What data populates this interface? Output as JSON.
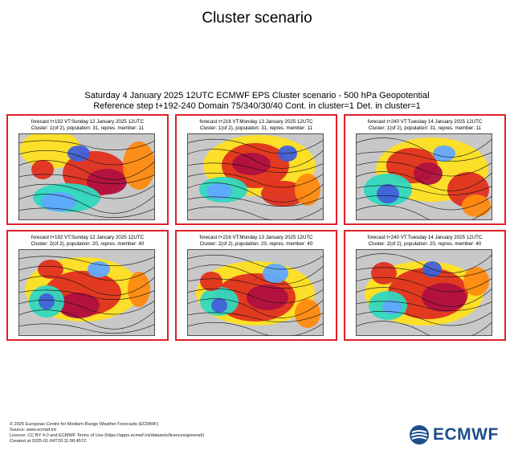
{
  "page": {
    "title": "Cluster scenario"
  },
  "chart_data": {
    "type": "map-panels",
    "title_line1": "Saturday 4 January 2025 12UTC ECMWF EPS Cluster scenario - 500 hPa Geopotential",
    "title_line2": "Reference step t+192-240 Domain 75/340/30/40 Cont. in cluster=1 Det. in cluster=1",
    "panels": [
      {
        "cluster": 1,
        "step": 192,
        "header_line1": "forecast t+192 VT:Sunday 12 January 2025 12UTC",
        "header_line2": "Cluster: 1(of 2), population: 31, repres. member: 11"
      },
      {
        "cluster": 1,
        "step": 216,
        "header_line1": "forecast t+216 VT:Monday 13 January 2025 12UTC",
        "header_line2": "Cluster: 1(of 2), population: 31, repres. member: 11"
      },
      {
        "cluster": 1,
        "step": 240,
        "header_line1": "forecast t+240 VT:Tuesday 14 January 2025 12UTC",
        "header_line2": "Cluster: 1(of 2), population: 31, repres. member: 11"
      },
      {
        "cluster": 2,
        "step": 192,
        "header_line1": "forecast t+192 VT:Sunday 12 January 2025 12UTC",
        "header_line2": "Cluster: 2(of 2), population: 20, repres. member: 40"
      },
      {
        "cluster": 2,
        "step": 216,
        "header_line1": "forecast t+216 VT:Monday 13 January 2025 12UTC",
        "header_line2": "Cluster: 2(of 2), population: 20, repres. member: 40"
      },
      {
        "cluster": 2,
        "step": 240,
        "header_line1": "forecast t+240 VT:Tuesday 14 January 2025 12UTC",
        "header_line2": "Cluster: 2(of 2), population: 20, repres. member: 40"
      }
    ],
    "colors": {
      "deep_low": "#4060d8",
      "low": "#60a8ff",
      "cool": "#30d8c0",
      "mild": "#20c050",
      "neutral": "#c8c8c8",
      "warm": "#ffe020",
      "warmer": "#ff8a10",
      "high": "#e03020",
      "very_high": "#b01040",
      "panel_border": "#e0202a"
    }
  },
  "footer": {
    "line1": "© 2025 European Centre for Medium-Range Weather Forecasts (ECMWF)",
    "line2": "Source: www.ecmwf.int",
    "line3": "Licence: CC BY 4.0 and ECMWF Terms of Use (https://apps.ecmwf.int/datasets/licences/general/)",
    "line4": "Created at 2025-01-04T20:11:58.457Z"
  },
  "logo": {
    "text": "ECMWF"
  }
}
